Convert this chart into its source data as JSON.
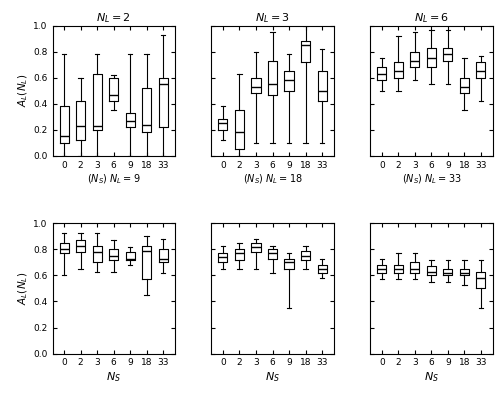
{
  "top_titles": [
    "$N_L=2$",
    "$N_L=3$",
    "$N_L=6$"
  ],
  "top_xlabels": [
    "$(N_S)\\ N_L=9$",
    "$(N_S)\\ N_L=18$",
    "$(N_S)\\ N_L=33$"
  ],
  "bottom_xlabels": [
    "$N_S$",
    "$N_S$",
    "$N_S$"
  ],
  "ylabel": "$A_L(N_L)$",
  "x_categories": [
    "0",
    "2",
    "3",
    "6",
    "9",
    "18",
    "33"
  ],
  "top_boxes": [
    [
      {
        "whislo": 0.0,
        "q1": 0.1,
        "med": 0.15,
        "q3": 0.38,
        "whishi": 0.78
      },
      {
        "whislo": 0.0,
        "q1": 0.12,
        "med": 0.23,
        "q3": 0.42,
        "whishi": 0.6
      },
      {
        "whislo": 0.0,
        "q1": 0.2,
        "med": 0.23,
        "q3": 0.63,
        "whishi": 0.78
      },
      {
        "whislo": 0.35,
        "q1": 0.42,
        "med": 0.47,
        "q3": 0.6,
        "whishi": 0.62
      },
      {
        "whislo": 0.0,
        "q1": 0.22,
        "med": 0.27,
        "q3": 0.33,
        "whishi": 0.78
      },
      {
        "whislo": 0.0,
        "q1": 0.18,
        "med": 0.24,
        "q3": 0.52,
        "whishi": 0.78
      },
      {
        "whislo": 0.0,
        "q1": 0.22,
        "med": 0.55,
        "q3": 0.6,
        "whishi": 0.93
      }
    ],
    [
      {
        "whislo": 0.12,
        "q1": 0.2,
        "med": 0.25,
        "q3": 0.28,
        "whishi": 0.38
      },
      {
        "whislo": 0.0,
        "q1": 0.05,
        "med": 0.18,
        "q3": 0.35,
        "whishi": 0.63
      },
      {
        "whislo": 0.1,
        "q1": 0.48,
        "med": 0.53,
        "q3": 0.6,
        "whishi": 0.8
      },
      {
        "whislo": 0.1,
        "q1": 0.47,
        "med": 0.55,
        "q3": 0.73,
        "whishi": 0.95
      },
      {
        "whislo": 0.1,
        "q1": 0.5,
        "med": 0.58,
        "q3": 0.65,
        "whishi": 0.78
      },
      {
        "whislo": 0.1,
        "q1": 0.72,
        "med": 0.85,
        "q3": 0.88,
        "whishi": 1.0
      },
      {
        "whislo": 0.1,
        "q1": 0.42,
        "med": 0.5,
        "q3": 0.65,
        "whishi": 0.82
      }
    ],
    [
      {
        "whislo": 0.5,
        "q1": 0.58,
        "med": 0.63,
        "q3": 0.68,
        "whishi": 0.75
      },
      {
        "whislo": 0.5,
        "q1": 0.6,
        "med": 0.65,
        "q3": 0.72,
        "whishi": 0.92
      },
      {
        "whislo": 0.58,
        "q1": 0.68,
        "med": 0.73,
        "q3": 0.8,
        "whishi": 0.95
      },
      {
        "whislo": 0.55,
        "q1": 0.68,
        "med": 0.75,
        "q3": 0.83,
        "whishi": 0.97
      },
      {
        "whislo": 0.55,
        "q1": 0.73,
        "med": 0.78,
        "q3": 0.83,
        "whishi": 0.97
      },
      {
        "whislo": 0.35,
        "q1": 0.48,
        "med": 0.53,
        "q3": 0.6,
        "whishi": 0.75
      },
      {
        "whislo": 0.42,
        "q1": 0.6,
        "med": 0.65,
        "q3": 0.72,
        "whishi": 0.77
      }
    ]
  ],
  "bottom_boxes": [
    [
      {
        "whislo": 0.6,
        "q1": 0.77,
        "med": 0.8,
        "q3": 0.85,
        "whishi": 0.93
      },
      {
        "whislo": 0.65,
        "q1": 0.78,
        "med": 0.83,
        "q3": 0.87,
        "whishi": 0.93
      },
      {
        "whislo": 0.63,
        "q1": 0.7,
        "med": 0.78,
        "q3": 0.83,
        "whishi": 0.93
      },
      {
        "whislo": 0.63,
        "q1": 0.72,
        "med": 0.75,
        "q3": 0.8,
        "whishi": 0.87
      },
      {
        "whislo": 0.68,
        "q1": 0.72,
        "med": 0.73,
        "q3": 0.78,
        "whishi": 0.82
      },
      {
        "whislo": 0.45,
        "q1": 0.57,
        "med": 0.79,
        "q3": 0.83,
        "whishi": 0.9
      },
      {
        "whislo": 0.62,
        "q1": 0.7,
        "med": 0.73,
        "q3": 0.8,
        "whishi": 0.88
      }
    ],
    [
      {
        "whislo": 0.65,
        "q1": 0.7,
        "med": 0.74,
        "q3": 0.77,
        "whishi": 0.83
      },
      {
        "whislo": 0.65,
        "q1": 0.72,
        "med": 0.77,
        "q3": 0.8,
        "whishi": 0.85
      },
      {
        "whislo": 0.65,
        "q1": 0.78,
        "med": 0.82,
        "q3": 0.85,
        "whishi": 0.88
      },
      {
        "whislo": 0.62,
        "q1": 0.73,
        "med": 0.77,
        "q3": 0.8,
        "whishi": 0.83
      },
      {
        "whislo": 0.35,
        "q1": 0.65,
        "med": 0.7,
        "q3": 0.73,
        "whishi": 0.77
      },
      {
        "whislo": 0.65,
        "q1": 0.72,
        "med": 0.75,
        "q3": 0.79,
        "whishi": 0.83
      },
      {
        "whislo": 0.58,
        "q1": 0.62,
        "med": 0.65,
        "q3": 0.68,
        "whishi": 0.73
      }
    ],
    [
      {
        "whislo": 0.57,
        "q1": 0.62,
        "med": 0.65,
        "q3": 0.68,
        "whishi": 0.73
      },
      {
        "whislo": 0.57,
        "q1": 0.62,
        "med": 0.65,
        "q3": 0.68,
        "whishi": 0.77
      },
      {
        "whislo": 0.57,
        "q1": 0.62,
        "med": 0.65,
        "q3": 0.7,
        "whishi": 0.77
      },
      {
        "whislo": 0.55,
        "q1": 0.6,
        "med": 0.63,
        "q3": 0.67,
        "whishi": 0.72
      },
      {
        "whislo": 0.55,
        "q1": 0.6,
        "med": 0.62,
        "q3": 0.65,
        "whishi": 0.72
      },
      {
        "whislo": 0.53,
        "q1": 0.6,
        "med": 0.62,
        "q3": 0.65,
        "whishi": 0.72
      },
      {
        "whislo": 0.35,
        "q1": 0.5,
        "med": 0.58,
        "q3": 0.63,
        "whishi": 0.72
      }
    ]
  ]
}
